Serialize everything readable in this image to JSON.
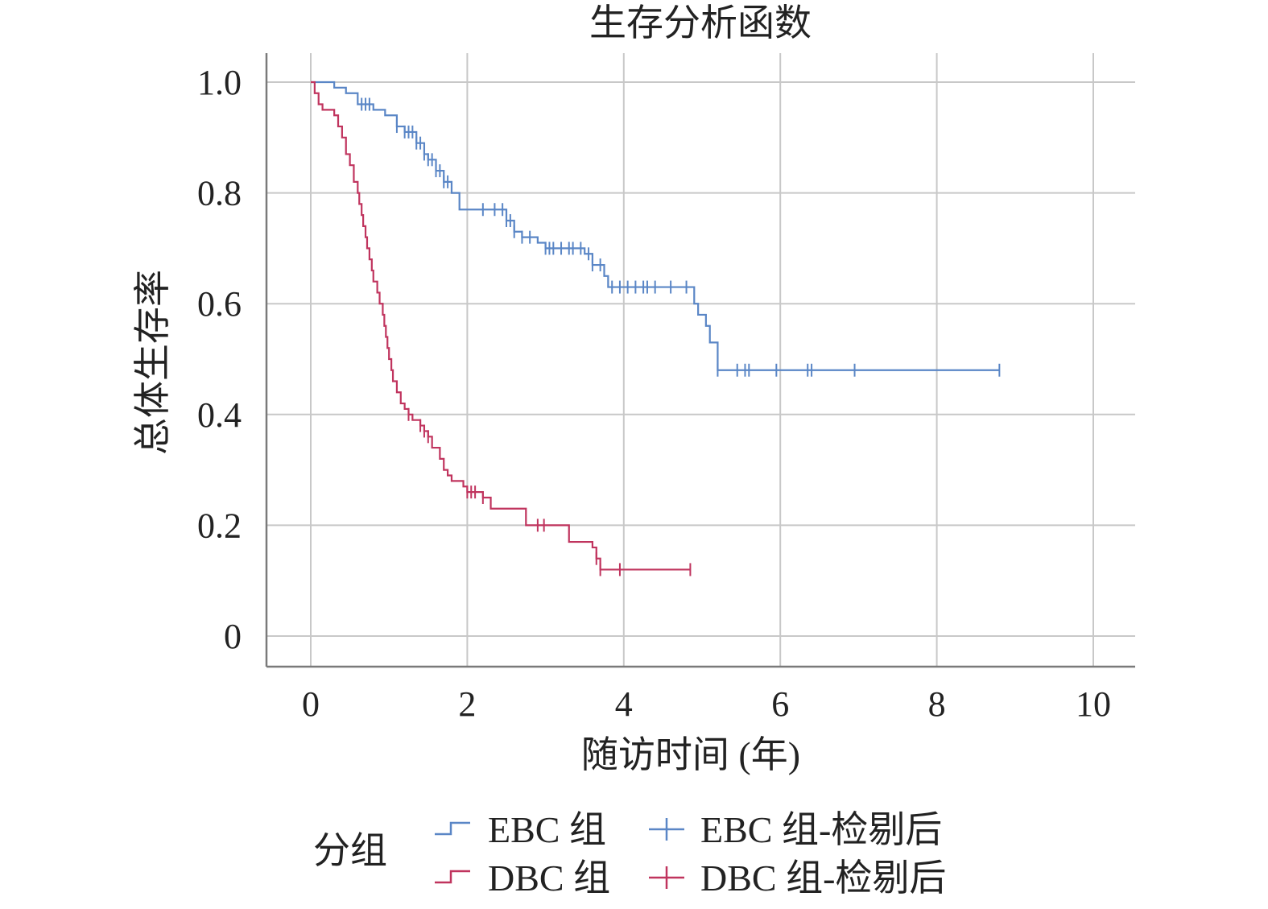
{
  "chart_data": {
    "type": "line",
    "title": "生存分析函数",
    "xlabel": "随访时间 (年)",
    "ylabel": "总体生存率",
    "xlim": [
      0,
      10
    ],
    "ylim": [
      0,
      1
    ],
    "x_ticks": [
      "0",
      "2",
      "4",
      "6",
      "8",
      "10"
    ],
    "x_tick_values": [
      0,
      2,
      4,
      6,
      8,
      10
    ],
    "y_ticks": [
      "0",
      "0.2",
      "0.4",
      "0.6",
      "0.8",
      "1.0"
    ],
    "y_tick_values": [
      0,
      0.2,
      0.4,
      0.6,
      0.8,
      1.0
    ],
    "grid": true,
    "legend": {
      "position": "bottom",
      "title": "分组",
      "entries": [
        {
          "label": "EBC 组",
          "kind": "line",
          "series": 0
        },
        {
          "label": "EBC 组-检剔后",
          "kind": "censor",
          "series": 0
        },
        {
          "label": "DBC 组",
          "kind": "line",
          "series": 1
        },
        {
          "label": "DBC 组-检剔后",
          "kind": "censor",
          "series": 1
        }
      ]
    },
    "series": [
      {
        "name": "EBC 组",
        "color": "#5a86c6",
        "steps": [
          [
            0,
            1.0
          ],
          [
            0.3,
            0.99
          ],
          [
            0.45,
            0.98
          ],
          [
            0.6,
            0.96
          ],
          [
            0.8,
            0.95
          ],
          [
            0.95,
            0.94
          ],
          [
            1.1,
            0.92
          ],
          [
            1.2,
            0.91
          ],
          [
            1.35,
            0.89
          ],
          [
            1.45,
            0.87
          ],
          [
            1.5,
            0.86
          ],
          [
            1.6,
            0.84
          ],
          [
            1.7,
            0.82
          ],
          [
            1.8,
            0.8
          ],
          [
            1.9,
            0.77
          ],
          [
            2.5,
            0.75
          ],
          [
            2.6,
            0.73
          ],
          [
            2.7,
            0.72
          ],
          [
            2.9,
            0.71
          ],
          [
            3.0,
            0.7
          ],
          [
            3.5,
            0.69
          ],
          [
            3.6,
            0.67
          ],
          [
            3.75,
            0.65
          ],
          [
            3.8,
            0.63
          ],
          [
            4.9,
            0.6
          ],
          [
            4.95,
            0.58
          ],
          [
            5.05,
            0.56
          ],
          [
            5.1,
            0.53
          ],
          [
            5.2,
            0.48
          ]
        ],
        "end_x": 8.8,
        "censored": [
          0.65,
          0.7,
          0.75,
          1.1,
          1.2,
          1.25,
          1.3,
          1.35,
          1.4,
          1.45,
          1.5,
          1.55,
          1.6,
          1.65,
          1.7,
          1.75,
          2.2,
          2.35,
          2.45,
          2.5,
          2.55,
          2.6,
          2.7,
          2.8,
          3.0,
          3.05,
          3.1,
          3.2,
          3.3,
          3.35,
          3.45,
          3.55,
          3.6,
          3.7,
          3.85,
          3.95,
          4.05,
          4.15,
          4.25,
          4.3,
          4.4,
          4.6,
          4.8,
          5.2,
          5.45,
          5.55,
          5.6,
          5.95,
          6.35,
          6.4,
          6.95,
          8.8
        ]
      },
      {
        "name": "DBC 组",
        "color": "#c0345e",
        "steps": [
          [
            0,
            1.0
          ],
          [
            0.05,
            0.98
          ],
          [
            0.1,
            0.96
          ],
          [
            0.15,
            0.95
          ],
          [
            0.3,
            0.94
          ],
          [
            0.35,
            0.92
          ],
          [
            0.4,
            0.9
          ],
          [
            0.45,
            0.87
          ],
          [
            0.5,
            0.85
          ],
          [
            0.55,
            0.82
          ],
          [
            0.6,
            0.8
          ],
          [
            0.62,
            0.78
          ],
          [
            0.65,
            0.76
          ],
          [
            0.67,
            0.74
          ],
          [
            0.7,
            0.72
          ],
          [
            0.72,
            0.7
          ],
          [
            0.75,
            0.68
          ],
          [
            0.78,
            0.66
          ],
          [
            0.8,
            0.64
          ],
          [
            0.85,
            0.62
          ],
          [
            0.88,
            0.6
          ],
          [
            0.92,
            0.58
          ],
          [
            0.94,
            0.56
          ],
          [
            0.96,
            0.54
          ],
          [
            0.98,
            0.52
          ],
          [
            1.0,
            0.5
          ],
          [
            1.03,
            0.48
          ],
          [
            1.05,
            0.46
          ],
          [
            1.1,
            0.44
          ],
          [
            1.15,
            0.42
          ],
          [
            1.2,
            0.41
          ],
          [
            1.25,
            0.4
          ],
          [
            1.3,
            0.39
          ],
          [
            1.4,
            0.38
          ],
          [
            1.45,
            0.37
          ],
          [
            1.5,
            0.36
          ],
          [
            1.55,
            0.34
          ],
          [
            1.65,
            0.32
          ],
          [
            1.7,
            0.3
          ],
          [
            1.75,
            0.29
          ],
          [
            1.8,
            0.28
          ],
          [
            1.95,
            0.27
          ],
          [
            2.0,
            0.26
          ],
          [
            2.2,
            0.25
          ],
          [
            2.3,
            0.23
          ],
          [
            2.75,
            0.2
          ],
          [
            3.3,
            0.17
          ],
          [
            3.6,
            0.16
          ],
          [
            3.65,
            0.14
          ],
          [
            3.7,
            0.12
          ]
        ],
        "end_x": 4.85,
        "censored": [
          1.25,
          1.4,
          1.45,
          1.5,
          2.0,
          2.05,
          2.1,
          2.2,
          2.9,
          2.98,
          3.65,
          3.7,
          3.95,
          4.85
        ]
      }
    ]
  }
}
